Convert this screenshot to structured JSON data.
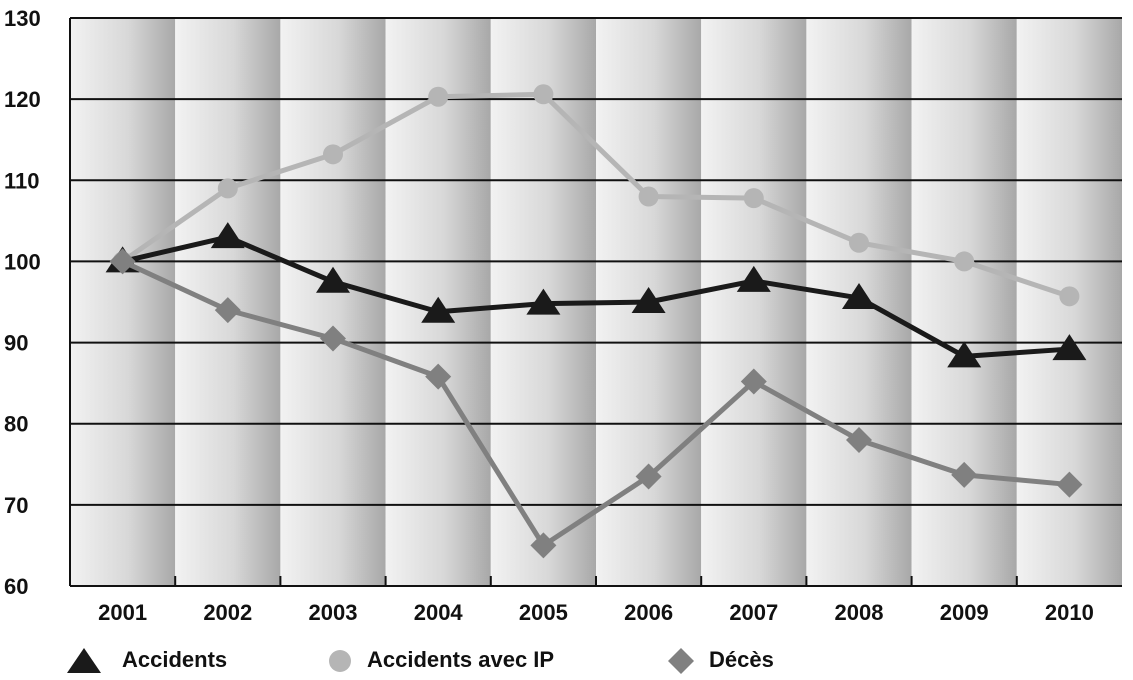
{
  "colors": {
    "accidents": "#1a1a1a",
    "accidents_ip": "#b5b5b5",
    "deces": "#808080"
  },
  "chart_data": {
    "type": "line",
    "categories": [
      "2001",
      "2002",
      "2003",
      "2004",
      "2005",
      "2006",
      "2007",
      "2008",
      "2009",
      "2010"
    ],
    "ylim": [
      60,
      130
    ],
    "yticks": [
      "60",
      "70",
      "80",
      "90",
      "100",
      "110",
      "120",
      "130"
    ],
    "grid": true,
    "legend_position": "bottom",
    "series": [
      {
        "name": "Accidents",
        "marker": "triangle",
        "values": [
          100,
          103,
          97.5,
          93.8,
          94.8,
          95,
          97.6,
          95.5,
          88.3,
          89.2
        ]
      },
      {
        "name": "Accidents avec IP",
        "marker": "circle",
        "values": [
          100,
          109,
          113.2,
          120.3,
          120.6,
          108,
          107.8,
          102.3,
          100,
          95.7
        ]
      },
      {
        "name": "Décès",
        "marker": "diamond",
        "values": [
          100,
          94,
          90.5,
          85.8,
          65,
          73.5,
          85.2,
          78,
          73.7,
          72.5
        ]
      }
    ]
  }
}
